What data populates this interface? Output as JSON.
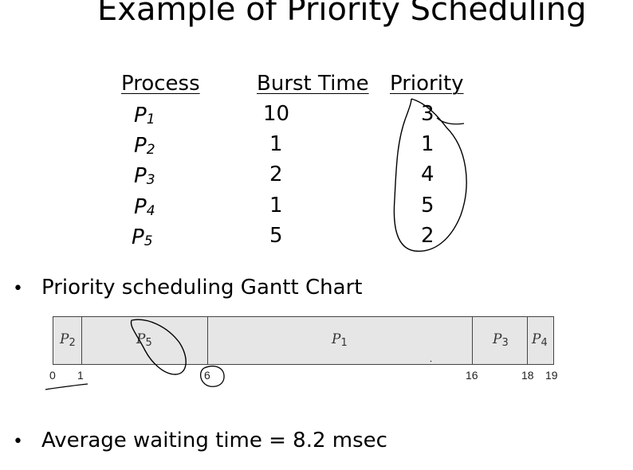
{
  "title": "Example of Priority Scheduling",
  "table": {
    "headers": {
      "process": "Process",
      "burst": "Burst Time",
      "priority": "Priority"
    },
    "rows": [
      {
        "letter": "P",
        "sub": "1",
        "burst": "10",
        "priority": "3"
      },
      {
        "letter": "P",
        "sub": "2",
        "burst": "1",
        "priority": "1"
      },
      {
        "letter": "P",
        "sub": "3",
        "burst": "2",
        "priority": "4"
      },
      {
        "letter": "P",
        "sub": "4",
        "burst": "1",
        "priority": "5"
      },
      {
        "letter": "P",
        "sub": "5",
        "burst": "5",
        "priority": "2"
      }
    ]
  },
  "bullets": {
    "gantt_heading": "Priority scheduling Gantt Chart",
    "average": "Average waiting time = 8.2 msec",
    "symbol": "•"
  },
  "gantt": {
    "segments": [
      {
        "letter": "P",
        "sub": "2",
        "start": 0,
        "end": 1
      },
      {
        "letter": "P",
        "sub": "5",
        "start": 1,
        "end": 6
      },
      {
        "letter": "P",
        "sub": "1",
        "start": 6,
        "end": 16
      },
      {
        "letter": "P",
        "sub": "3",
        "start": 16,
        "end": 18
      },
      {
        "letter": "P",
        "sub": "4",
        "start": 18,
        "end": 19
      }
    ],
    "ticks": [
      "0",
      "1",
      "6",
      "16",
      "18",
      "19"
    ]
  },
  "colors": {
    "gantt_fill": "#e6e6e6",
    "ink": "#000000"
  }
}
